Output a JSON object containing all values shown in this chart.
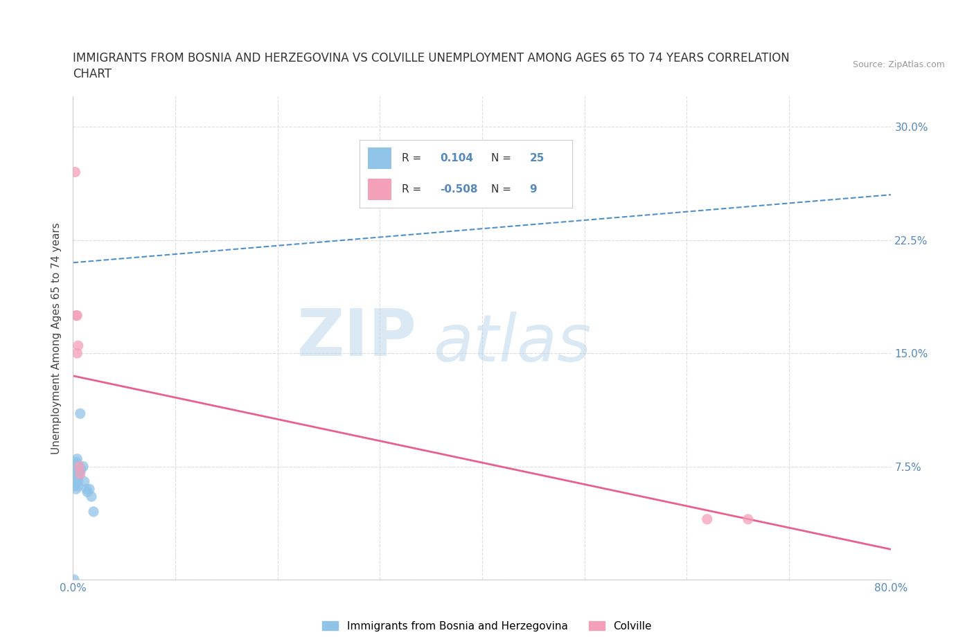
{
  "title": "IMMIGRANTS FROM BOSNIA AND HERZEGOVINA VS COLVILLE UNEMPLOYMENT AMONG AGES 65 TO 74 YEARS CORRELATION\nCHART",
  "source": "Source: ZipAtlas.com",
  "ylabel": "Unemployment Among Ages 65 to 74 years",
  "xlim": [
    0.0,
    0.8
  ],
  "ylim": [
    0.0,
    0.32
  ],
  "xticks": [
    0.0,
    0.1,
    0.2,
    0.3,
    0.4,
    0.5,
    0.6,
    0.7,
    0.8
  ],
  "xticklabels": [
    "0.0%",
    "",
    "",
    "",
    "",
    "",
    "",
    "",
    "80.0%"
  ],
  "yticks": [
    0.0,
    0.075,
    0.15,
    0.225,
    0.3
  ],
  "yticklabels": [
    "",
    "7.5%",
    "15.0%",
    "22.5%",
    "30.0%"
  ],
  "blue_scatter_x": [
    0.001,
    0.002,
    0.002,
    0.002,
    0.003,
    0.003,
    0.003,
    0.004,
    0.004,
    0.005,
    0.005,
    0.005,
    0.005,
    0.006,
    0.006,
    0.007,
    0.008,
    0.01,
    0.011,
    0.013,
    0.014,
    0.016,
    0.018,
    0.02,
    0.001
  ],
  "blue_scatter_y": [
    0.07,
    0.075,
    0.065,
    0.062,
    0.078,
    0.073,
    0.06,
    0.08,
    0.077,
    0.072,
    0.068,
    0.065,
    0.062,
    0.075,
    0.07,
    0.11,
    0.073,
    0.075,
    0.065,
    0.06,
    0.058,
    0.06,
    0.055,
    0.045,
    0.0
  ],
  "pink_scatter_x": [
    0.002,
    0.003,
    0.004,
    0.004,
    0.005,
    0.006,
    0.007,
    0.62,
    0.66
  ],
  "pink_scatter_y": [
    0.27,
    0.175,
    0.175,
    0.15,
    0.155,
    0.075,
    0.07,
    0.04,
    0.04
  ],
  "blue_line_x": [
    0.0,
    0.8
  ],
  "blue_line_y": [
    0.21,
    0.255
  ],
  "pink_line_x": [
    0.0,
    0.8
  ],
  "pink_line_y": [
    0.135,
    0.02
  ],
  "blue_color": "#90C4E8",
  "pink_color": "#F4A0B8",
  "blue_line_color": "#5090C8",
  "pink_line_color": "#E86090",
  "legend_r_blue": "0.104",
  "legend_n_blue": "25",
  "legend_r_pink": "-0.508",
  "legend_n_pink": "9",
  "legend_label_blue": "Immigrants from Bosnia and Herzegovina",
  "legend_label_pink": "Colville",
  "watermark_zip": "ZIP",
  "watermark_atlas": "atlas",
  "background_color": "#ffffff",
  "grid_color": "#dddddd"
}
